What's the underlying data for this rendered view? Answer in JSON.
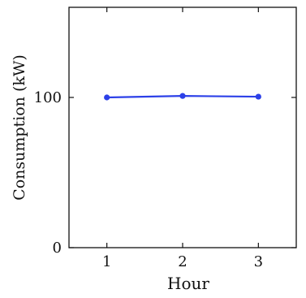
{
  "chart_data": {
    "type": "line",
    "x": [
      1,
      2,
      3
    ],
    "series": [
      {
        "values": [
          100,
          101,
          100.5
        ],
        "color": "#2c40e8"
      }
    ],
    "xlabel": "Hour",
    "ylabel": "Consumption (kW)",
    "xlim": [
      0.5,
      3.5
    ],
    "ylim": [
      0,
      160
    ],
    "xticks": [
      1,
      2,
      3
    ],
    "xtick_labels": [
      "1",
      "2",
      "3"
    ],
    "yticks": [
      0,
      100
    ],
    "ytick_labels": [
      "0",
      "100"
    ],
    "grid": false,
    "legend": "none"
  }
}
